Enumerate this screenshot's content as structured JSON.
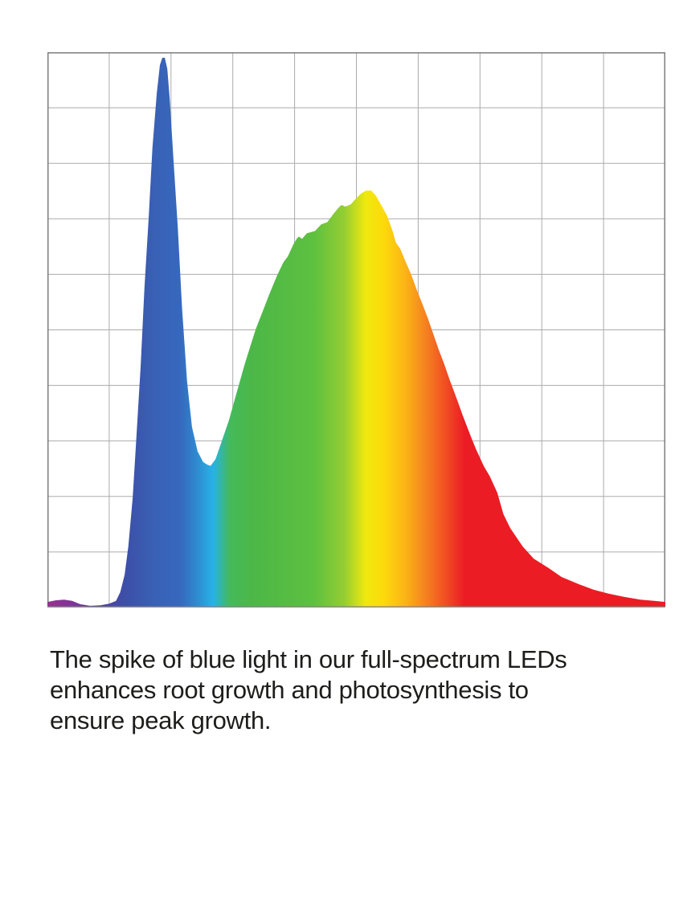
{
  "page": {
    "background_color": "#ffffff"
  },
  "caption": {
    "lines": [
      "The spike of blue light in our full-spectrum LEDs",
      "enhances root growth and photosynthesis to",
      "ensure peak growth."
    ],
    "text_color": "#1d1d1b"
  },
  "chart_data": {
    "type": "area",
    "title": "",
    "xlabel": "",
    "ylabel": "",
    "axis_tick_labels_visible": false,
    "legend": "none",
    "description": "Spectral power distribution of a full-spectrum grow-light LED. Horizontal axis is wavelength increasing left to right (violet through red, shown by rainbow gradient fill); vertical axis is relative intensity. A sharp blue spike near the left reaches almost the top of the plot; a broad green-yellow-red hump peaks at about 75% intensity; a long red tail decays toward the right edge. No numeric tick labels are shown - values below are in grid units (0-10 on both axes).",
    "x_range_grid_units": [
      0,
      10
    ],
    "y_range_grid_units": [
      0,
      10
    ],
    "grid": {
      "on": true,
      "rows": 10,
      "cols": 10,
      "line_color": "#ababab",
      "frame_color": "#7e7e7e",
      "baseline_color": "#8a8a8a"
    },
    "gradient_stops": [
      {
        "offset": 0.0,
        "color": "#97308F"
      },
      {
        "offset": 0.045,
        "color": "#7A3698"
      },
      {
        "offset": 0.085,
        "color": "#53409F"
      },
      {
        "offset": 0.125,
        "color": "#3D4FA7"
      },
      {
        "offset": 0.17,
        "color": "#3960B4"
      },
      {
        "offset": 0.215,
        "color": "#3668BE"
      },
      {
        "offset": 0.245,
        "color": "#2E8FD2"
      },
      {
        "offset": 0.268,
        "color": "#27B2E7"
      },
      {
        "offset": 0.295,
        "color": "#44BA5B"
      },
      {
        "offset": 0.33,
        "color": "#4CB748"
      },
      {
        "offset": 0.43,
        "color": "#5DC03F"
      },
      {
        "offset": 0.48,
        "color": "#94CD33"
      },
      {
        "offset": 0.515,
        "color": "#EFE90E"
      },
      {
        "offset": 0.545,
        "color": "#FDD90B"
      },
      {
        "offset": 0.58,
        "color": "#FBB316"
      },
      {
        "offset": 0.612,
        "color": "#F58220"
      },
      {
        "offset": 0.645,
        "color": "#F04D23"
      },
      {
        "offset": 0.675,
        "color": "#EC1C24"
      },
      {
        "offset": 1.0,
        "color": "#EC1C24"
      }
    ],
    "series": [
      {
        "name": "Relative spectral power (full-spectrum LED)",
        "points": [
          [
            0.0,
            0.1
          ],
          [
            0.14,
            0.13
          ],
          [
            0.27,
            0.14
          ],
          [
            0.4,
            0.12
          ],
          [
            0.53,
            0.06
          ],
          [
            0.69,
            0.03
          ],
          [
            0.86,
            0.04
          ],
          [
            1.0,
            0.07
          ],
          [
            1.11,
            0.12
          ],
          [
            1.18,
            0.28
          ],
          [
            1.25,
            0.59
          ],
          [
            1.31,
            1.1
          ],
          [
            1.38,
            1.97
          ],
          [
            1.44,
            3.06
          ],
          [
            1.51,
            4.36
          ],
          [
            1.57,
            5.74
          ],
          [
            1.64,
            7.04
          ],
          [
            1.7,
            8.28
          ],
          [
            1.77,
            9.26
          ],
          [
            1.82,
            9.77
          ],
          [
            1.86,
            9.9
          ],
          [
            1.9,
            9.9
          ],
          [
            1.94,
            9.7
          ],
          [
            1.98,
            9.14
          ],
          [
            2.04,
            8.06
          ],
          [
            2.11,
            6.83
          ],
          [
            2.18,
            5.38
          ],
          [
            2.26,
            4.07
          ],
          [
            2.34,
            3.25
          ],
          [
            2.43,
            2.81
          ],
          [
            2.52,
            2.62
          ],
          [
            2.59,
            2.57
          ],
          [
            2.64,
            2.55
          ],
          [
            2.72,
            2.67
          ],
          [
            2.81,
            2.96
          ],
          [
            2.94,
            3.38
          ],
          [
            3.07,
            3.9
          ],
          [
            3.2,
            4.41
          ],
          [
            3.37,
            5.01
          ],
          [
            3.49,
            5.35
          ],
          [
            3.59,
            5.64
          ],
          [
            3.72,
            5.99
          ],
          [
            3.82,
            6.22
          ],
          [
            3.89,
            6.32
          ],
          [
            3.98,
            6.54
          ],
          [
            4.04,
            6.65
          ],
          [
            4.07,
            6.68
          ],
          [
            4.12,
            6.64
          ],
          [
            4.2,
            6.74
          ],
          [
            4.33,
            6.78
          ],
          [
            4.43,
            6.9
          ],
          [
            4.53,
            6.94
          ],
          [
            4.63,
            7.09
          ],
          [
            4.71,
            7.2
          ],
          [
            4.76,
            7.25
          ],
          [
            4.82,
            7.22
          ],
          [
            4.91,
            7.26
          ],
          [
            4.99,
            7.36
          ],
          [
            5.08,
            7.46
          ],
          [
            5.16,
            7.51
          ],
          [
            5.24,
            7.51
          ],
          [
            5.32,
            7.41
          ],
          [
            5.41,
            7.23
          ],
          [
            5.49,
            7.07
          ],
          [
            5.58,
            6.8
          ],
          [
            5.64,
            6.57
          ],
          [
            5.71,
            6.46
          ],
          [
            5.8,
            6.22
          ],
          [
            5.89,
            5.99
          ],
          [
            5.98,
            5.71
          ],
          [
            6.06,
            5.49
          ],
          [
            6.16,
            5.2
          ],
          [
            6.25,
            4.91
          ],
          [
            6.33,
            4.65
          ],
          [
            6.42,
            4.39
          ],
          [
            6.51,
            4.1
          ],
          [
            6.59,
            3.86
          ],
          [
            6.64,
            3.71
          ],
          [
            6.72,
            3.46
          ],
          [
            6.8,
            3.23
          ],
          [
            6.87,
            3.03
          ],
          [
            6.94,
            2.84
          ],
          [
            7.06,
            2.55
          ],
          [
            7.16,
            2.36
          ],
          [
            7.28,
            2.07
          ],
          [
            7.38,
            1.68
          ],
          [
            7.49,
            1.43
          ],
          [
            7.69,
            1.1
          ],
          [
            7.87,
            0.88
          ],
          [
            8.11,
            0.71
          ],
          [
            8.32,
            0.55
          ],
          [
            8.6,
            0.42
          ],
          [
            8.84,
            0.32
          ],
          [
            9.08,
            0.25
          ],
          [
            9.34,
            0.19
          ],
          [
            9.6,
            0.14
          ],
          [
            9.82,
            0.12
          ],
          [
            10.0,
            0.1
          ]
        ]
      }
    ]
  }
}
